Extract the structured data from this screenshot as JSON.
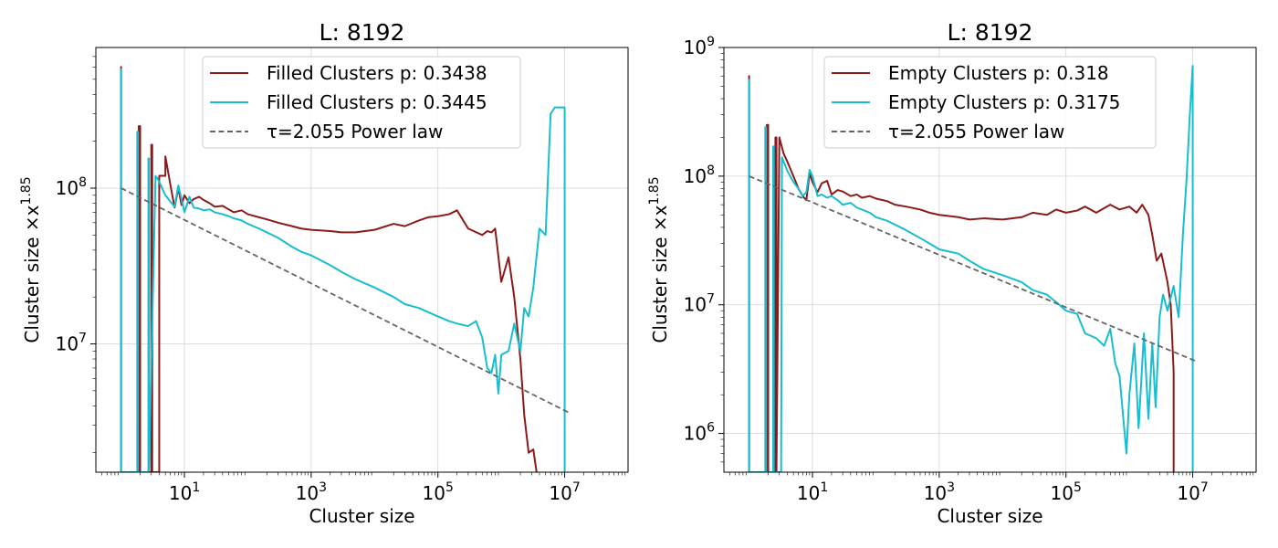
{
  "chart_data": [
    {
      "type": "line",
      "title": "L: 8192",
      "xlabel": "Cluster size",
      "ylabel": "Cluster size ×x^1.85",
      "xscale": "log",
      "yscale": "log",
      "xlim": [
        0.4,
        100000000
      ],
      "ylim": [
        1500000,
        800000000
      ],
      "grid": true,
      "legend_position": "top",
      "xticks": [
        {
          "value": 10,
          "base": "10",
          "exp": "1"
        },
        {
          "value": 1000,
          "base": "10",
          "exp": "3"
        },
        {
          "value": 100000,
          "base": "10",
          "exp": "5"
        },
        {
          "value": 10000000,
          "base": "10",
          "exp": "7"
        }
      ],
      "yticks": [
        {
          "value": 10000000,
          "base": "10",
          "exp": "7"
        },
        {
          "value": 100000000,
          "base": "10",
          "exp": "8"
        }
      ],
      "series": [
        {
          "name": "Filled Clusters p: 0.3438",
          "color": "#8b1a1a",
          "style": "solid",
          "x": [
            1,
            1,
            1,
            1.9,
            1.9,
            2,
            2,
            3,
            3,
            3.1,
            3.1,
            4,
            4,
            5,
            5,
            6,
            7,
            8,
            9,
            10,
            12,
            14,
            17,
            20,
            25,
            30,
            40,
            50,
            60,
            80,
            100,
            150,
            200,
            300,
            500,
            700,
            1000,
            2000,
            3000,
            5000,
            10000,
            20000,
            30000,
            50000,
            70000,
            100000,
            150000,
            200000,
            300000,
            500000,
            600000,
            700000,
            800000,
            1000000,
            1300000,
            1600000,
            2000000,
            2300000,
            2700000,
            3200000,
            3600000
          ],
          "y": [
            1500000,
            600000000,
            1500000,
            1500000,
            250000000,
            250000000,
            1500000,
            1500000,
            190000000,
            190000000,
            1500000,
            1500000,
            120000000,
            120000000,
            160000000,
            105000000,
            75000000,
            100000000,
            78000000,
            90000000,
            80000000,
            85000000,
            88000000,
            84000000,
            80000000,
            76000000,
            77000000,
            73000000,
            70000000,
            72000000,
            68000000,
            65000000,
            63000000,
            60000000,
            57000000,
            55000000,
            54000000,
            53000000,
            52000000,
            52000000,
            54000000,
            59000000,
            57000000,
            62000000,
            65000000,
            66000000,
            68000000,
            72000000,
            55000000,
            50000000,
            53000000,
            52000000,
            55000000,
            25000000,
            36000000,
            20000000,
            8000000,
            3500000,
            2000000,
            2100000,
            1500000
          ]
        },
        {
          "name": "Filled Clusters p: 0.3445",
          "color": "#17becf",
          "style": "solid",
          "x": [
            1,
            1,
            1,
            1.8,
            1.8,
            1.85,
            1.85,
            2.7,
            2.7,
            2.75,
            2.75,
            3.5,
            4,
            5,
            6,
            7,
            8,
            9,
            10,
            12,
            14,
            17,
            20,
            25,
            30,
            40,
            50,
            60,
            80,
            100,
            150,
            200,
            300,
            500,
            700,
            1000,
            2000,
            3000,
            5000,
            10000,
            20000,
            30000,
            50000,
            70000,
            100000,
            150000,
            200000,
            300000,
            400000,
            500000,
            600000,
            700000,
            800000,
            900000,
            1000000,
            1300000,
            1600000,
            2000000,
            2300000,
            2700000,
            3200000,
            4000000,
            5000000,
            6000000,
            7000000,
            8000000,
            10000000,
            10000000
          ],
          "y": [
            1500000,
            580000000,
            1500000,
            1500000,
            230000000,
            230000000,
            1500000,
            1500000,
            155000000,
            155000000,
            1500000,
            120000000,
            110000000,
            90000000,
            82000000,
            76000000,
            104000000,
            85000000,
            70000000,
            88000000,
            75000000,
            74000000,
            72000000,
            73000000,
            70000000,
            68000000,
            66000000,
            64000000,
            62000000,
            59000000,
            55000000,
            52000000,
            48000000,
            42000000,
            39000000,
            37000000,
            32000000,
            29000000,
            26000000,
            23000000,
            20000000,
            18000000,
            17000000,
            16000000,
            15000000,
            14000000,
            13500000,
            13000000,
            14000000,
            11000000,
            7000000,
            6500000,
            8500000,
            4800000,
            8500000,
            9000000,
            13500000,
            9000000,
            17000000,
            15000000,
            23000000,
            55000000,
            50000000,
            300000000,
            330000000,
            330000000,
            330000000,
            1500000
          ]
        },
        {
          "name": "τ=2.055 Power law",
          "color": "#666666",
          "style": "dashed",
          "x": [
            1,
            12000000
          ],
          "y": [
            100000000,
            3600000
          ]
        }
      ]
    },
    {
      "type": "line",
      "title": "L: 8192",
      "xlabel": "Cluster size",
      "ylabel": "Cluster size ×x^1.85",
      "xscale": "log",
      "yscale": "log",
      "xlim": [
        0.4,
        100000000
      ],
      "ylim": [
        500000,
        1000000000
      ],
      "grid": true,
      "legend_position": "top",
      "xticks": [
        {
          "value": 10,
          "base": "10",
          "exp": "1"
        },
        {
          "value": 1000,
          "base": "10",
          "exp": "3"
        },
        {
          "value": 100000,
          "base": "10",
          "exp": "5"
        },
        {
          "value": 10000000,
          "base": "10",
          "exp": "7"
        }
      ],
      "yticks": [
        {
          "value": 1000000,
          "base": "10",
          "exp": "6"
        },
        {
          "value": 10000000,
          "base": "10",
          "exp": "7"
        },
        {
          "value": 100000000,
          "base": "10",
          "exp": "8"
        },
        {
          "value": 1000000000,
          "base": "10",
          "exp": "9"
        }
      ],
      "series": [
        {
          "name": "Empty Clusters p: 0.318",
          "color": "#8b1a1a",
          "style": "solid",
          "x": [
            1,
            1,
            1,
            1.9,
            1.9,
            2,
            2,
            2.6,
            2.6,
            2.7,
            2.7,
            3,
            3.5,
            4,
            5,
            6,
            7,
            8,
            9,
            10,
            12,
            14,
            17,
            20,
            25,
            30,
            40,
            50,
            60,
            80,
            100,
            150,
            200,
            300,
            500,
            700,
            1000,
            2000,
            3000,
            5000,
            10000,
            20000,
            30000,
            50000,
            70000,
            100000,
            150000,
            200000,
            300000,
            500000,
            700000,
            1000000,
            1300000,
            1600000,
            2000000,
            2300000,
            2700000,
            3200000,
            4000000,
            4500000,
            5000000,
            5000000
          ],
          "y": [
            500000,
            600000000,
            500000,
            500000,
            250000000,
            250000000,
            500000,
            500000,
            200000000,
            200000000,
            500000,
            200000000,
            150000000,
            130000000,
            100000000,
            80000000,
            70000000,
            65000000,
            105000000,
            90000000,
            75000000,
            88000000,
            92000000,
            72000000,
            78000000,
            76000000,
            70000000,
            72000000,
            68000000,
            70000000,
            67000000,
            64000000,
            60000000,
            58000000,
            55000000,
            52000000,
            50000000,
            48000000,
            46000000,
            47000000,
            46000000,
            48000000,
            52000000,
            50000000,
            55000000,
            52000000,
            54000000,
            58000000,
            52000000,
            60000000,
            55000000,
            58000000,
            52000000,
            60000000,
            50000000,
            35000000,
            22000000,
            25000000,
            15000000,
            10000000,
            3000000,
            500000
          ]
        },
        {
          "name": "Empty Clusters p: 0.3175",
          "color": "#17becf",
          "style": "solid",
          "x": [
            1,
            1,
            1,
            1.8,
            1.8,
            1.85,
            1.85,
            2.4,
            2.4,
            2.45,
            2.45,
            3.2,
            3.3,
            3.3,
            4,
            5,
            6,
            7,
            8,
            9,
            10,
            12,
            14,
            17,
            20,
            25,
            30,
            40,
            50,
            60,
            80,
            100,
            150,
            200,
            300,
            500,
            700,
            1000,
            2000,
            3000,
            5000,
            10000,
            20000,
            30000,
            50000,
            70000,
            100000,
            150000,
            200000,
            300000,
            400000,
            500000,
            600000,
            700000,
            900000,
            1000000,
            1200000,
            1400000,
            1700000,
            2000000,
            2300000,
            2600000,
            3000000,
            3400000,
            4000000,
            5000000,
            6000000,
            7000000,
            8000000,
            9000000,
            10000000,
            10000000
          ],
          "y": [
            500000,
            560000000,
            500000,
            500000,
            240000000,
            240000000,
            500000,
            500000,
            170000000,
            170000000,
            500000,
            500000,
            140000000,
            140000000,
            110000000,
            90000000,
            80000000,
            70000000,
            75000000,
            112000000,
            100000000,
            70000000,
            72000000,
            68000000,
            70000000,
            65000000,
            60000000,
            62000000,
            57000000,
            55000000,
            52000000,
            48000000,
            45000000,
            42000000,
            38000000,
            33000000,
            30000000,
            27000000,
            25000000,
            22000000,
            19000000,
            17000000,
            15000000,
            13000000,
            12000000,
            10500000,
            9000000,
            8500000,
            6000000,
            5500000,
            4800000,
            6500000,
            3500000,
            2800000,
            700000,
            2000000,
            5000000,
            1100000,
            6000000,
            1300000,
            5000000,
            1600000,
            8000000,
            12000000,
            9000000,
            14000000,
            8000000,
            35000000,
            95000000,
            300000000,
            720000000,
            500000
          ]
        },
        {
          "name": "τ=2.055 Power law",
          "color": "#666666",
          "style": "dashed",
          "x": [
            1,
            12000000
          ],
          "y": [
            100000000,
            3600000
          ]
        }
      ]
    }
  ]
}
